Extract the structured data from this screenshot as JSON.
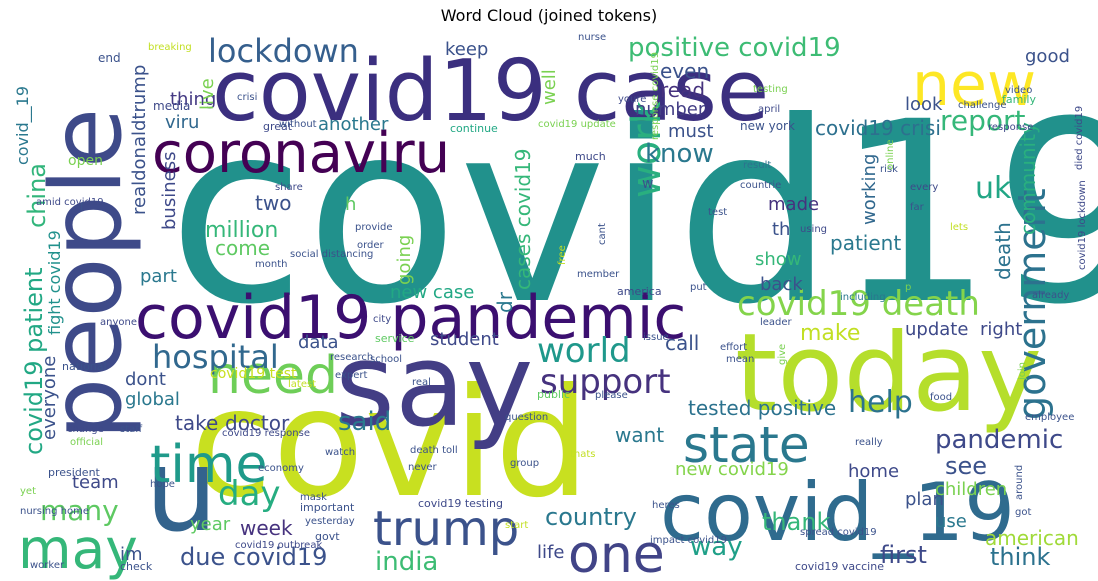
{
  "chart_data": {
    "type": "wordcloud",
    "title": "Word Cloud (joined tokens)",
    "words": [
      {
        "text": "covid19",
        "color": "#21918c"
      },
      {
        "text": "covid",
        "color": "#c8e020"
      },
      {
        "text": "people",
        "color": "#3e4a89"
      },
      {
        "text": "covid19 case",
        "color": "#3b2f7f"
      },
      {
        "text": "say",
        "color": "#433e85"
      },
      {
        "text": "today",
        "color": "#b5de2b"
      },
      {
        "text": "covid_19",
        "color": "#2f6b8e"
      },
      {
        "text": "u",
        "color": "#33638d"
      },
      {
        "text": "new",
        "color": "#fde725"
      },
      {
        "text": "coronaviru",
        "color": "#440154"
      },
      {
        "text": "covid19 pandemic",
        "color": "#3b0f70"
      },
      {
        "text": "time",
        "color": "#1f9a8a"
      },
      {
        "text": "may",
        "color": "#35b779"
      },
      {
        "text": "need",
        "color": "#6ece58"
      },
      {
        "text": "state",
        "color": "#2a788e"
      },
      {
        "text": "trump",
        "color": "#3b528b"
      },
      {
        "text": "one",
        "color": "#414487"
      },
      {
        "text": "government",
        "color": "#2c728e"
      },
      {
        "text": "work",
        "color": "#29af7f"
      },
      {
        "text": "lockdown",
        "color": "#355f8d"
      },
      {
        "text": "positive covid19",
        "color": "#3dbc74"
      },
      {
        "text": "covid19 death",
        "color": "#84d44b"
      },
      {
        "text": "hospital",
        "color": "#31688e"
      },
      {
        "text": "world",
        "color": "#1f988b"
      },
      {
        "text": "support",
        "color": "#46327e"
      },
      {
        "text": "day",
        "color": "#26ad81"
      },
      {
        "text": "report",
        "color": "#35b779"
      },
      {
        "text": "uk",
        "color": "#21a685"
      },
      {
        "text": "help",
        "color": "#2c728e"
      },
      {
        "text": "pandemic",
        "color": "#3e4989"
      },
      {
        "text": "covid19 crisi",
        "color": "#2d708e"
      },
      {
        "text": "know",
        "color": "#2a788e"
      },
      {
        "text": "covid19 patient",
        "color": "#22a884"
      },
      {
        "text": "china",
        "color": "#31b57b"
      },
      {
        "text": "due covid19",
        "color": "#3b528b"
      },
      {
        "text": "many",
        "color": "#5ec962"
      },
      {
        "text": "india",
        "color": "#3dbc74"
      },
      {
        "text": "country",
        "color": "#2a788e"
      },
      {
        "text": "thank",
        "color": "#35b779"
      },
      {
        "text": "first",
        "color": "#3e4989"
      },
      {
        "text": "think",
        "color": "#2c728e"
      },
      {
        "text": "american",
        "color": "#a0da39"
      },
      {
        "text": "way",
        "color": "#1fa088"
      },
      {
        "text": "said",
        "color": "#2a788e"
      },
      {
        "text": "see",
        "color": "#3b528b"
      },
      {
        "text": "week",
        "color": "#46327e"
      },
      {
        "text": "million",
        "color": "#35b779"
      },
      {
        "text": "make",
        "color": "#c2df23"
      },
      {
        "text": "even",
        "color": "#3b528b"
      },
      {
        "text": "keep",
        "color": "#3b528b"
      },
      {
        "text": "good",
        "color": "#3b528b"
      },
      {
        "text": "read",
        "color": "#46327e"
      },
      {
        "text": "thing",
        "color": "#443983"
      },
      {
        "text": "viru",
        "color": "#31688e"
      },
      {
        "text": "another",
        "color": "#2a788e"
      },
      {
        "text": "live",
        "color": "#7ad151"
      },
      {
        "text": "must",
        "color": "#3b528b"
      },
      {
        "text": "look",
        "color": "#3b528b"
      },
      {
        "text": "number",
        "color": "#433e85"
      },
      {
        "text": "well",
        "color": "#7ad151"
      },
      {
        "text": "business",
        "color": "#3e4989"
      },
      {
        "text": "realdonaldtrump",
        "color": "#3b528b"
      },
      {
        "text": "two",
        "color": "#3b528b"
      },
      {
        "text": "come",
        "color": "#5ec962"
      },
      {
        "text": "part",
        "color": "#2a788e"
      },
      {
        "text": "made",
        "color": "#46327e"
      },
      {
        "text": "th",
        "color": "#3b528b"
      },
      {
        "text": "working",
        "color": "#31688e"
      },
      {
        "text": "patient",
        "color": "#2a788e"
      },
      {
        "text": "community",
        "color": "#29af7f"
      },
      {
        "text": "death",
        "color": "#2c728e"
      },
      {
        "text": "show",
        "color": "#35b779"
      },
      {
        "text": "back",
        "color": "#3b528b"
      },
      {
        "text": "update",
        "color": "#3e4989"
      },
      {
        "text": "right",
        "color": "#3e4989"
      },
      {
        "text": "going",
        "color": "#7ad151"
      },
      {
        "text": "cases covid19",
        "color": "#35b779"
      },
      {
        "text": "dr",
        "color": "#2a788e"
      },
      {
        "text": "new case",
        "color": "#22a884"
      },
      {
        "text": "student",
        "color": "#3e4989"
      },
      {
        "text": "data",
        "color": "#3b528b"
      },
      {
        "text": "call",
        "color": "#3b528b"
      },
      {
        "text": "dont",
        "color": "#3b528b"
      },
      {
        "text": "global",
        "color": "#2a788e"
      },
      {
        "text": "take",
        "color": "#3e4989"
      },
      {
        "text": "doctor",
        "color": "#3e4989"
      },
      {
        "text": "covid19 test",
        "color": "#c8e020"
      },
      {
        "text": "everyone",
        "color": "#3b528b"
      },
      {
        "text": "tested positive",
        "color": "#2c728e"
      },
      {
        "text": "want",
        "color": "#2a788e"
      },
      {
        "text": "new covid19",
        "color": "#84d44b"
      },
      {
        "text": "home",
        "color": "#3e4989"
      },
      {
        "text": "children",
        "color": "#7ad151"
      },
      {
        "text": "plan",
        "color": "#3b528b"
      },
      {
        "text": "use",
        "color": "#2a788e"
      },
      {
        "text": "team",
        "color": "#3e4989"
      },
      {
        "text": "year",
        "color": "#5ec962"
      },
      {
        "text": "im",
        "color": "#3b528b"
      },
      {
        "text": "life",
        "color": "#3e4989"
      },
      {
        "text": "fight covid19",
        "color": "#21918c"
      },
      {
        "text": "covid__19",
        "color": "#2a788e"
      },
      {
        "text": "open",
        "color": "#7ad151"
      },
      {
        "text": "h",
        "color": "#5ec962"
      },
      {
        "text": "w",
        "color": "#3b528b"
      },
      {
        "text": "end",
        "color": "#3b528b"
      },
      {
        "text": "media",
        "color": "#3e4989"
      },
      {
        "text": "breaking",
        "color": "#c2df23"
      },
      {
        "text": "great",
        "color": "#3e4989"
      },
      {
        "text": "crisi",
        "color": "#3b528b"
      },
      {
        "text": "without",
        "color": "#3b528b"
      },
      {
        "text": "continue",
        "color": "#22a884"
      },
      {
        "text": "covid19 update",
        "color": "#7ad151"
      },
      {
        "text": "response covid19",
        "color": "#7ad151"
      },
      {
        "text": "much",
        "color": "#3e4989"
      },
      {
        "text": "new york",
        "color": "#3b528b"
      },
      {
        "text": "nurse",
        "color": "#3b528b"
      },
      {
        "text": "testing",
        "color": "#7ad151"
      },
      {
        "text": "youre",
        "color": "#3e4989"
      },
      {
        "text": "video",
        "color": "#3b528b"
      },
      {
        "text": "family",
        "color": "#35b779"
      },
      {
        "text": "challenge",
        "color": "#3b528b"
      },
      {
        "text": "response",
        "color": "#3e4989"
      },
      {
        "text": "april",
        "color": "#3e4989"
      },
      {
        "text": "result",
        "color": "#2c728e"
      },
      {
        "text": "countrie",
        "color": "#3b528b"
      },
      {
        "text": "risk",
        "color": "#3b528b"
      },
      {
        "text": "every",
        "color": "#3e4989"
      },
      {
        "text": "far",
        "color": "#3b528b"
      },
      {
        "text": "online",
        "color": "#7ad151"
      },
      {
        "text": "lets",
        "color": "#c2df23"
      },
      {
        "text": "covid19 lockdown",
        "color": "#3e4989"
      },
      {
        "text": "died covid19",
        "color": "#3e4989"
      },
      {
        "text": "test",
        "color": "#3b528b"
      },
      {
        "text": "share",
        "color": "#3e4989"
      },
      {
        "text": "amid covid19",
        "color": "#3e4989"
      },
      {
        "text": "social distancing",
        "color": "#3b528b"
      },
      {
        "text": "provide",
        "color": "#3b528b"
      },
      {
        "text": "order",
        "color": "#3b528b"
      },
      {
        "text": "month",
        "color": "#3b528b"
      },
      {
        "text": "anyone",
        "color": "#3e4989"
      },
      {
        "text": "free",
        "color": "#c2df23"
      },
      {
        "text": "cant",
        "color": "#3b528b"
      },
      {
        "text": "member",
        "color": "#3b528b"
      },
      {
        "text": "using",
        "color": "#3e4989"
      },
      {
        "text": "including",
        "color": "#2a788e"
      },
      {
        "text": "p",
        "color": "#7ad151"
      },
      {
        "text": "already",
        "color": "#3b528b"
      },
      {
        "text": "america",
        "color": "#3e4989"
      },
      {
        "text": "put",
        "color": "#3b528b"
      },
      {
        "text": "leader",
        "color": "#3b528b"
      },
      {
        "text": "city",
        "color": "#3e4989"
      },
      {
        "text": "research",
        "color": "#3b528b"
      },
      {
        "text": "service",
        "color": "#5ec962"
      },
      {
        "text": "issue",
        "color": "#3b528b"
      },
      {
        "text": "national",
        "color": "#3b528b"
      },
      {
        "text": "school",
        "color": "#3b528b"
      },
      {
        "text": "effort",
        "color": "#3b528b"
      },
      {
        "text": "mean",
        "color": "#3b528b"
      },
      {
        "text": "give",
        "color": "#7ad151"
      },
      {
        "text": "join",
        "color": "#7ad151"
      },
      {
        "text": "expert",
        "color": "#3b528b"
      },
      {
        "text": "public",
        "color": "#5ec962"
      },
      {
        "text": "please",
        "color": "#3b528b"
      },
      {
        "text": "real",
        "color": "#3b528b"
      },
      {
        "text": "latest",
        "color": "#c2df23"
      },
      {
        "text": "question",
        "color": "#3b528b"
      },
      {
        "text": "food",
        "color": "#3b528b"
      },
      {
        "text": "employee",
        "color": "#3b528b"
      },
      {
        "text": "change",
        "color": "#3e4989"
      },
      {
        "text": "staff",
        "color": "#3b528b"
      },
      {
        "text": "covid19 response",
        "color": "#3e4989"
      },
      {
        "text": "official",
        "color": "#7ad151"
      },
      {
        "text": "thats",
        "color": "#c2df23"
      },
      {
        "text": "watch",
        "color": "#3b528b"
      },
      {
        "text": "really",
        "color": "#3b528b"
      },
      {
        "text": "president",
        "color": "#3b528b"
      },
      {
        "text": "economy",
        "color": "#3b528b"
      },
      {
        "text": "group",
        "color": "#3b528b"
      },
      {
        "text": "hope",
        "color": "#3b528b"
      },
      {
        "text": "mask",
        "color": "#3b528b"
      },
      {
        "text": "yet",
        "color": "#7ad151"
      },
      {
        "text": "important",
        "color": "#3b528b"
      },
      {
        "text": "yesterday",
        "color": "#3b528b"
      },
      {
        "text": "covid19 testing",
        "color": "#3e4989"
      },
      {
        "text": "start",
        "color": "#c2df23"
      },
      {
        "text": "heres",
        "color": "#3b528b"
      },
      {
        "text": "around",
        "color": "#3b528b"
      },
      {
        "text": "got",
        "color": "#3b528b"
      },
      {
        "text": "nursing home",
        "color": "#3b528b"
      },
      {
        "text": "govt",
        "color": "#3b528b"
      },
      {
        "text": "covid19 outbreak",
        "color": "#3e4989"
      },
      {
        "text": "impact covid19",
        "color": "#3b528b"
      },
      {
        "text": "spread covid19",
        "color": "#3b528b"
      },
      {
        "text": "worker",
        "color": "#3b528b"
      },
      {
        "text": "check",
        "color": "#3b528b"
      },
      {
        "text": "covid19 vaccine",
        "color": "#3e4989"
      },
      {
        "text": "death toll",
        "color": "#3b528b"
      },
      {
        "text": "never",
        "color": "#3b528b"
      },
      {
        "text": "f",
        "color": "#3b528b"
      }
    ]
  }
}
